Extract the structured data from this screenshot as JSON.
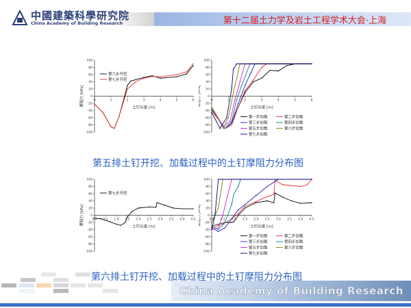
{
  "header": {
    "logo_cn": "中國建築科學研究院",
    "logo_en": "China Academy of Building Research",
    "conference": "第十二届土力学及岩土工程学术大会·上海"
  },
  "captions": {
    "row5": "第五排土钉开挖、加载过程中的土钉摩阻力分布图",
    "row6": "第六排土钉开挖、加载过程中的土钉摩阻力分布图"
  },
  "footer": {
    "brand": "China Academy of Building Research"
  },
  "colors": {
    "accent": "#2b62c0",
    "conference_text": "#d42020"
  },
  "chart_data": [
    {
      "type": "line",
      "xlabel": "土钉长度 [m]",
      "ylabel": "摩阻力 [kPa]",
      "xlim": [
        0,
        6
      ],
      "ylim": [
        -100,
        100
      ],
      "xticks": [
        "0",
        "1",
        "2",
        "3",
        "4",
        "5",
        "6"
      ],
      "yticks": [
        -100,
        -80,
        -60,
        -40,
        -20,
        0,
        20,
        40,
        60,
        80,
        100
      ],
      "legend": "top-left",
      "series": [
        {
          "name": "第六步开挖",
          "color": "#000000",
          "points": [
            [
              0,
              -22
            ],
            [
              0.5,
              -45
            ],
            [
              1,
              -85
            ],
            [
              1.2,
              -90
            ],
            [
              1.5,
              -55
            ],
            [
              1.8,
              -5
            ],
            [
              2,
              30
            ],
            [
              2.2,
              42
            ],
            [
              3,
              52
            ],
            [
              3.5,
              57
            ],
            [
              4,
              50
            ],
            [
              5,
              54
            ],
            [
              5.6,
              62
            ],
            [
              6,
              85
            ]
          ]
        },
        {
          "name": "第七步开挖",
          "color": "#e03030",
          "points": [
            [
              0,
              -22
            ],
            [
              0.5,
              -45
            ],
            [
              1,
              -85
            ],
            [
              1.2,
              -90
            ],
            [
              1.5,
              -55
            ],
            [
              1.8,
              -10
            ],
            [
              2,
              20
            ],
            [
              2.5,
              40
            ],
            [
              3,
              50
            ],
            [
              3.5,
              55
            ],
            [
              4,
              54
            ],
            [
              5,
              60
            ],
            [
              5.6,
              68
            ],
            [
              6,
              90
            ]
          ]
        }
      ]
    },
    {
      "type": "line",
      "xlabel": "土钉长度 [m]",
      "ylabel": "摩阻力 [kPa]",
      "xlim": [
        0,
        6
      ],
      "ylim": [
        -100,
        100
      ],
      "xticks": [
        "0",
        "1",
        "2",
        "3",
        "4",
        "5",
        "6"
      ],
      "yticks": [
        -100,
        -80,
        -60,
        -40,
        -20,
        0,
        20,
        40,
        60,
        80,
        100
      ],
      "legend": "bottom-right",
      "series": [
        {
          "name": "第一步加载",
          "color": "#000000",
          "points": [
            [
              0,
              -40
            ],
            [
              0.5,
              -70
            ],
            [
              0.8,
              -90
            ],
            [
              1.2,
              -75
            ],
            [
              1.6,
              -30
            ],
            [
              2,
              10
            ],
            [
              2.5,
              40
            ],
            [
              3,
              50
            ],
            [
              3.5,
              72
            ],
            [
              4,
              70
            ],
            [
              4.5,
              85
            ],
            [
              5,
              90
            ],
            [
              6,
              90
            ]
          ]
        },
        {
          "name": "第二步加载",
          "color": "#e03030",
          "points": [
            [
              0,
              -40
            ],
            [
              0.8,
              -90
            ],
            [
              1.2,
              -80
            ],
            [
              1.6,
              -30
            ],
            [
              2,
              15
            ],
            [
              2.5,
              45
            ],
            [
              3,
              80
            ],
            [
              3.3,
              90
            ],
            [
              6,
              90
            ]
          ]
        },
        {
          "name": "第三步加载",
          "color": "#2020c0",
          "points": [
            [
              0,
              -35
            ],
            [
              0.8,
              -90
            ],
            [
              1.2,
              -75
            ],
            [
              1.6,
              -20
            ],
            [
              2,
              30
            ],
            [
              2.3,
              60
            ],
            [
              2.6,
              90
            ],
            [
              6,
              90
            ]
          ]
        },
        {
          "name": "第四步加载",
          "color": "#008080",
          "points": [
            [
              0,
              -35
            ],
            [
              0.8,
              -90
            ],
            [
              1.2,
              -70
            ],
            [
              1.5,
              -10
            ],
            [
              1.8,
              30
            ],
            [
              2.3,
              90
            ],
            [
              6,
              90
            ]
          ]
        },
        {
          "name": "第五步加载",
          "color": "#d020d0",
          "points": [
            [
              0,
              -30
            ],
            [
              0.7,
              -85
            ],
            [
              1.1,
              -70
            ],
            [
              1.4,
              -10
            ],
            [
              1.7,
              40
            ],
            [
              2.0,
              90
            ],
            [
              6,
              90
            ]
          ]
        },
        {
          "name": "第六步加载",
          "color": "#808000",
          "points": [
            [
              0,
              -30
            ],
            [
              0.7,
              -90
            ],
            [
              1.0,
              -60
            ],
            [
              1.3,
              10
            ],
            [
              1.7,
              90
            ],
            [
              6,
              90
            ]
          ]
        },
        {
          "name": "第七步加载",
          "color": "#000080",
          "points": [
            [
              0,
              -45
            ],
            [
              0.5,
              -90
            ],
            [
              0.9,
              -60
            ],
            [
              1.2,
              20
            ],
            [
              1.3,
              75
            ],
            [
              1.5,
              90
            ],
            [
              6,
              90
            ]
          ]
        }
      ]
    },
    {
      "type": "line",
      "xlabel": "土钉长度 [m]",
      "ylabel": "摩阻力 [kPa]",
      "xlim": [
        0,
        4.5
      ],
      "ylim": [
        -100,
        100
      ],
      "xticks": [
        "0.0",
        "0.5",
        "1.0",
        "1.5",
        "2.0",
        "2.5",
        "3.0",
        "3.5",
        "4.0",
        "4.5"
      ],
      "yticks": [
        -100,
        -80,
        -60,
        -40,
        -20,
        0,
        20,
        40,
        60,
        80,
        100
      ],
      "legend": "top-left",
      "series": [
        {
          "name": "第七步开挖",
          "color": "#000000",
          "points": [
            [
              0,
              -8
            ],
            [
              0.3,
              -10
            ],
            [
              0.7,
              -18
            ],
            [
              1.0,
              -25
            ],
            [
              1.2,
              -28
            ],
            [
              1.4,
              -20
            ],
            [
              1.5,
              -5
            ],
            [
              1.7,
              10
            ],
            [
              2,
              20
            ],
            [
              2.5,
              23
            ],
            [
              2.8,
              22
            ],
            [
              2.85,
              35
            ],
            [
              3.2,
              28
            ],
            [
              3.6,
              20
            ],
            [
              4,
              18
            ],
            [
              4.5,
              18
            ]
          ]
        }
      ]
    },
    {
      "type": "line",
      "xlabel": "土钉长度 [m]",
      "ylabel": "摩阻力 [kPa]",
      "xlim": [
        0,
        4.5
      ],
      "ylim": [
        -100,
        100
      ],
      "xticks": [
        "0.0",
        "0.5",
        "1.0",
        "1.5",
        "2.0",
        "2.5",
        "3.0",
        "3.5",
        "4.0",
        "4.5"
      ],
      "yticks": [
        -100,
        -80,
        -60,
        -40,
        -20,
        0,
        20,
        40,
        60,
        80,
        100
      ],
      "legend": "bottom-right",
      "series": [
        {
          "name": "第一步加载",
          "color": "#000000",
          "points": [
            [
              0,
              -30
            ],
            [
              0.3,
              -25
            ],
            [
              0.6,
              -20
            ],
            [
              0.9,
              -20
            ],
            [
              1.0,
              -18
            ],
            [
              1.2,
              0
            ],
            [
              1.5,
              20
            ],
            [
              2,
              35
            ],
            [
              2.5,
              40
            ],
            [
              2.8,
              35
            ],
            [
              2.85,
              62
            ],
            [
              3.2,
              50
            ],
            [
              3.6,
              40
            ],
            [
              4,
              33
            ],
            [
              4.5,
              35
            ]
          ]
        },
        {
          "name": "第二步加载",
          "color": "#e03030",
          "points": [
            [
              0,
              -35
            ],
            [
              0.5,
              -25
            ],
            [
              0.9,
              -10
            ],
            [
              1.2,
              5
            ],
            [
              1.5,
              25
            ],
            [
              2,
              38
            ],
            [
              2.5,
              52
            ],
            [
              2.8,
              58
            ],
            [
              2.85,
              97
            ],
            [
              3.2,
              85
            ],
            [
              4,
              80
            ],
            [
              4.3,
              85
            ],
            [
              4.5,
              100
            ]
          ]
        },
        {
          "name": "第三步加载",
          "color": "#2020c0",
          "points": [
            [
              0,
              -35
            ],
            [
              0.3,
              -45
            ],
            [
              0.6,
              -35
            ],
            [
              0.9,
              -10
            ],
            [
              1.2,
              15
            ],
            [
              1.5,
              30
            ],
            [
              2,
              55
            ],
            [
              2.5,
              80
            ],
            [
              3,
              100
            ],
            [
              4.5,
              100
            ]
          ]
        },
        {
          "name": "第四步加载",
          "color": "#008080",
          "points": [
            [
              0,
              -30
            ],
            [
              0.3,
              -40
            ],
            [
              0.6,
              -20
            ],
            [
              0.9,
              30
            ],
            [
              1.0,
              60
            ],
            [
              1.2,
              80
            ],
            [
              1.3,
              100
            ],
            [
              4.5,
              100
            ]
          ]
        },
        {
          "name": "第五步加载",
          "color": "#d020d0",
          "points": [
            [
              0,
              -40
            ],
            [
              0.3,
              -35
            ],
            [
              0.5,
              0
            ],
            [
              0.7,
              50
            ],
            [
              0.9,
              100
            ],
            [
              4.5,
              100
            ]
          ]
        },
        {
          "name": "第六步加载",
          "color": "#808000",
          "points": [
            [
              0,
              -20
            ],
            [
              0.3,
              20
            ],
            [
              0.5,
              100
            ],
            [
              4.5,
              100
            ]
          ]
        },
        {
          "name": "第七步加载",
          "color": "#000080",
          "points": [
            [
              0,
              -40
            ],
            [
              0.15,
              0
            ],
            [
              0.3,
              100
            ],
            [
              4.5,
              100
            ]
          ]
        }
      ]
    }
  ]
}
